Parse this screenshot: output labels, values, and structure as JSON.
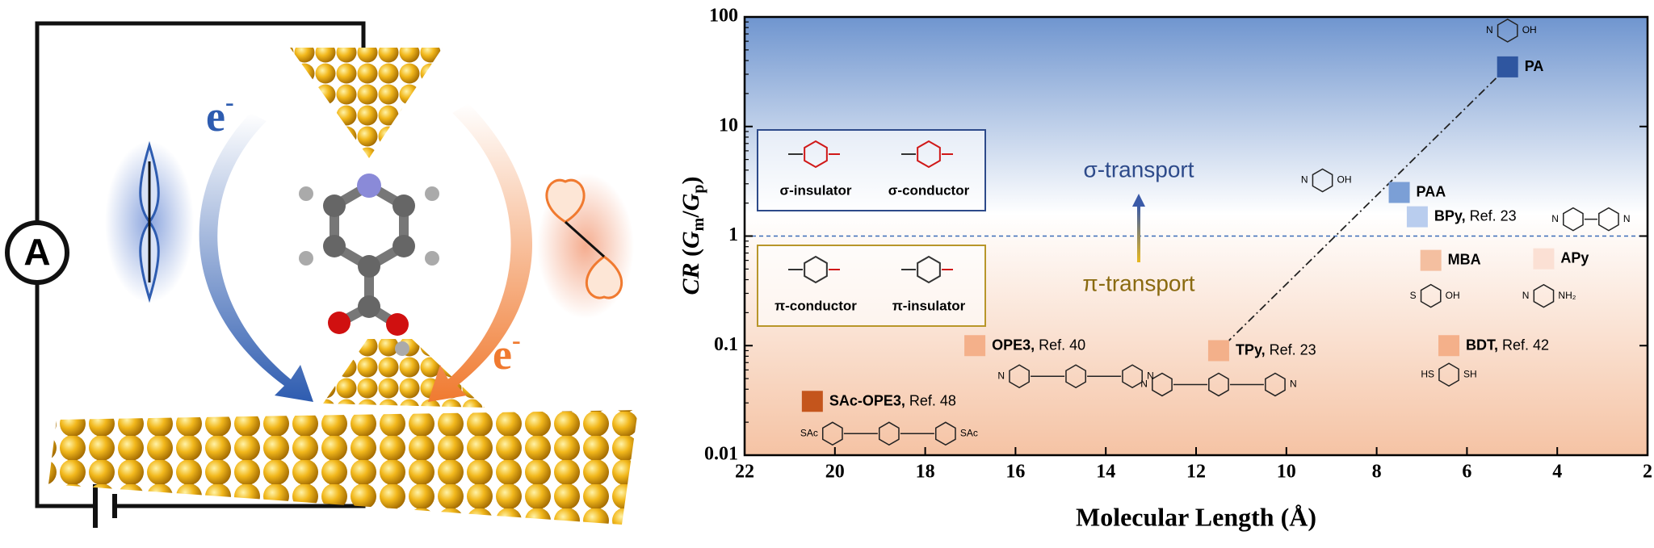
{
  "illustration": {
    "ammeter": "A",
    "electron": "e",
    "charge": "-"
  },
  "chart_data": {
    "type": "scatter",
    "y_label_parts": [
      "CR",
      " (",
      "G",
      "m",
      "/",
      "G",
      "p",
      ")"
    ],
    "x_label": "Molecular Length (Å)",
    "xlim": [
      22,
      2
    ],
    "xticks": [
      22,
      20,
      18,
      16,
      14,
      12,
      10,
      8,
      6,
      4,
      2
    ],
    "ylim": [
      0.01,
      100
    ],
    "yticks": [
      0.01,
      0.1,
      1,
      10,
      100
    ],
    "log_y": true,
    "reference_line": 1,
    "annotations": {
      "upper": "σ-transport",
      "lower": "π-transport"
    },
    "legend_boxes": [
      {
        "items": [
          "σ-insulator",
          "σ-conductor"
        ],
        "color": "#2d4a8a"
      },
      {
        "items": [
          "π-conductor",
          "π-insulator"
        ],
        "color": "#b8962a"
      }
    ],
    "series": [
      {
        "name": "PA",
        "color": "#2f56a0",
        "x": [
          5.1
        ],
        "y": [
          35
        ],
        "trend": true,
        "rings": 1,
        "groups": [
          "N",
          "OH"
        ]
      },
      {
        "name": "PAA",
        "color": "#7b9fd6",
        "x": [
          7.5
        ],
        "y": [
          2.5
        ],
        "rings": 1,
        "groups": [
          "N",
          "OH"
        ]
      },
      {
        "name": "BPy,",
        "ref": "Ref. 23",
        "color": "#b9cdee",
        "x": [
          7.1
        ],
        "y": [
          1.5
        ],
        "rings": 2,
        "groups": [
          "N",
          "N"
        ]
      },
      {
        "name": "MBA",
        "color": "#f4bfa0",
        "x": [
          6.8
        ],
        "y": [
          0.6
        ],
        "rings": 1,
        "groups": [
          "S",
          "OH"
        ]
      },
      {
        "name": "APy",
        "color": "#fbe0d4",
        "x": [
          4.3
        ],
        "y": [
          0.62
        ],
        "rings": 1,
        "groups": [
          "N",
          "NH₂"
        ]
      },
      {
        "name": "BDT,",
        "ref": "Ref. 42",
        "color": "#f4b08a",
        "x": [
          6.4
        ],
        "y": [
          0.1
        ],
        "rings": 1,
        "groups": [
          "HS",
          "SH"
        ]
      },
      {
        "name": "TPy,",
        "ref": "Ref. 23",
        "color": "#f3b08a",
        "x": [
          11.5
        ],
        "y": [
          0.09
        ],
        "trend": true,
        "rings": 3,
        "groups": [
          "N",
          "N"
        ]
      },
      {
        "name": "OPE3,",
        "ref": "Ref. 40",
        "color": "#f4b08a",
        "x": [
          16.9
        ],
        "y": [
          0.1
        ],
        "rings": 3,
        "groups": [
          "N",
          "N"
        ]
      },
      {
        "name": "SAc-OPE3,",
        "ref": "Ref. 48",
        "color": "#c4551c",
        "x": [
          20.5
        ],
        "y": [
          0.031
        ],
        "rings": 3,
        "groups": [
          "SAc",
          "SAc"
        ]
      }
    ]
  }
}
